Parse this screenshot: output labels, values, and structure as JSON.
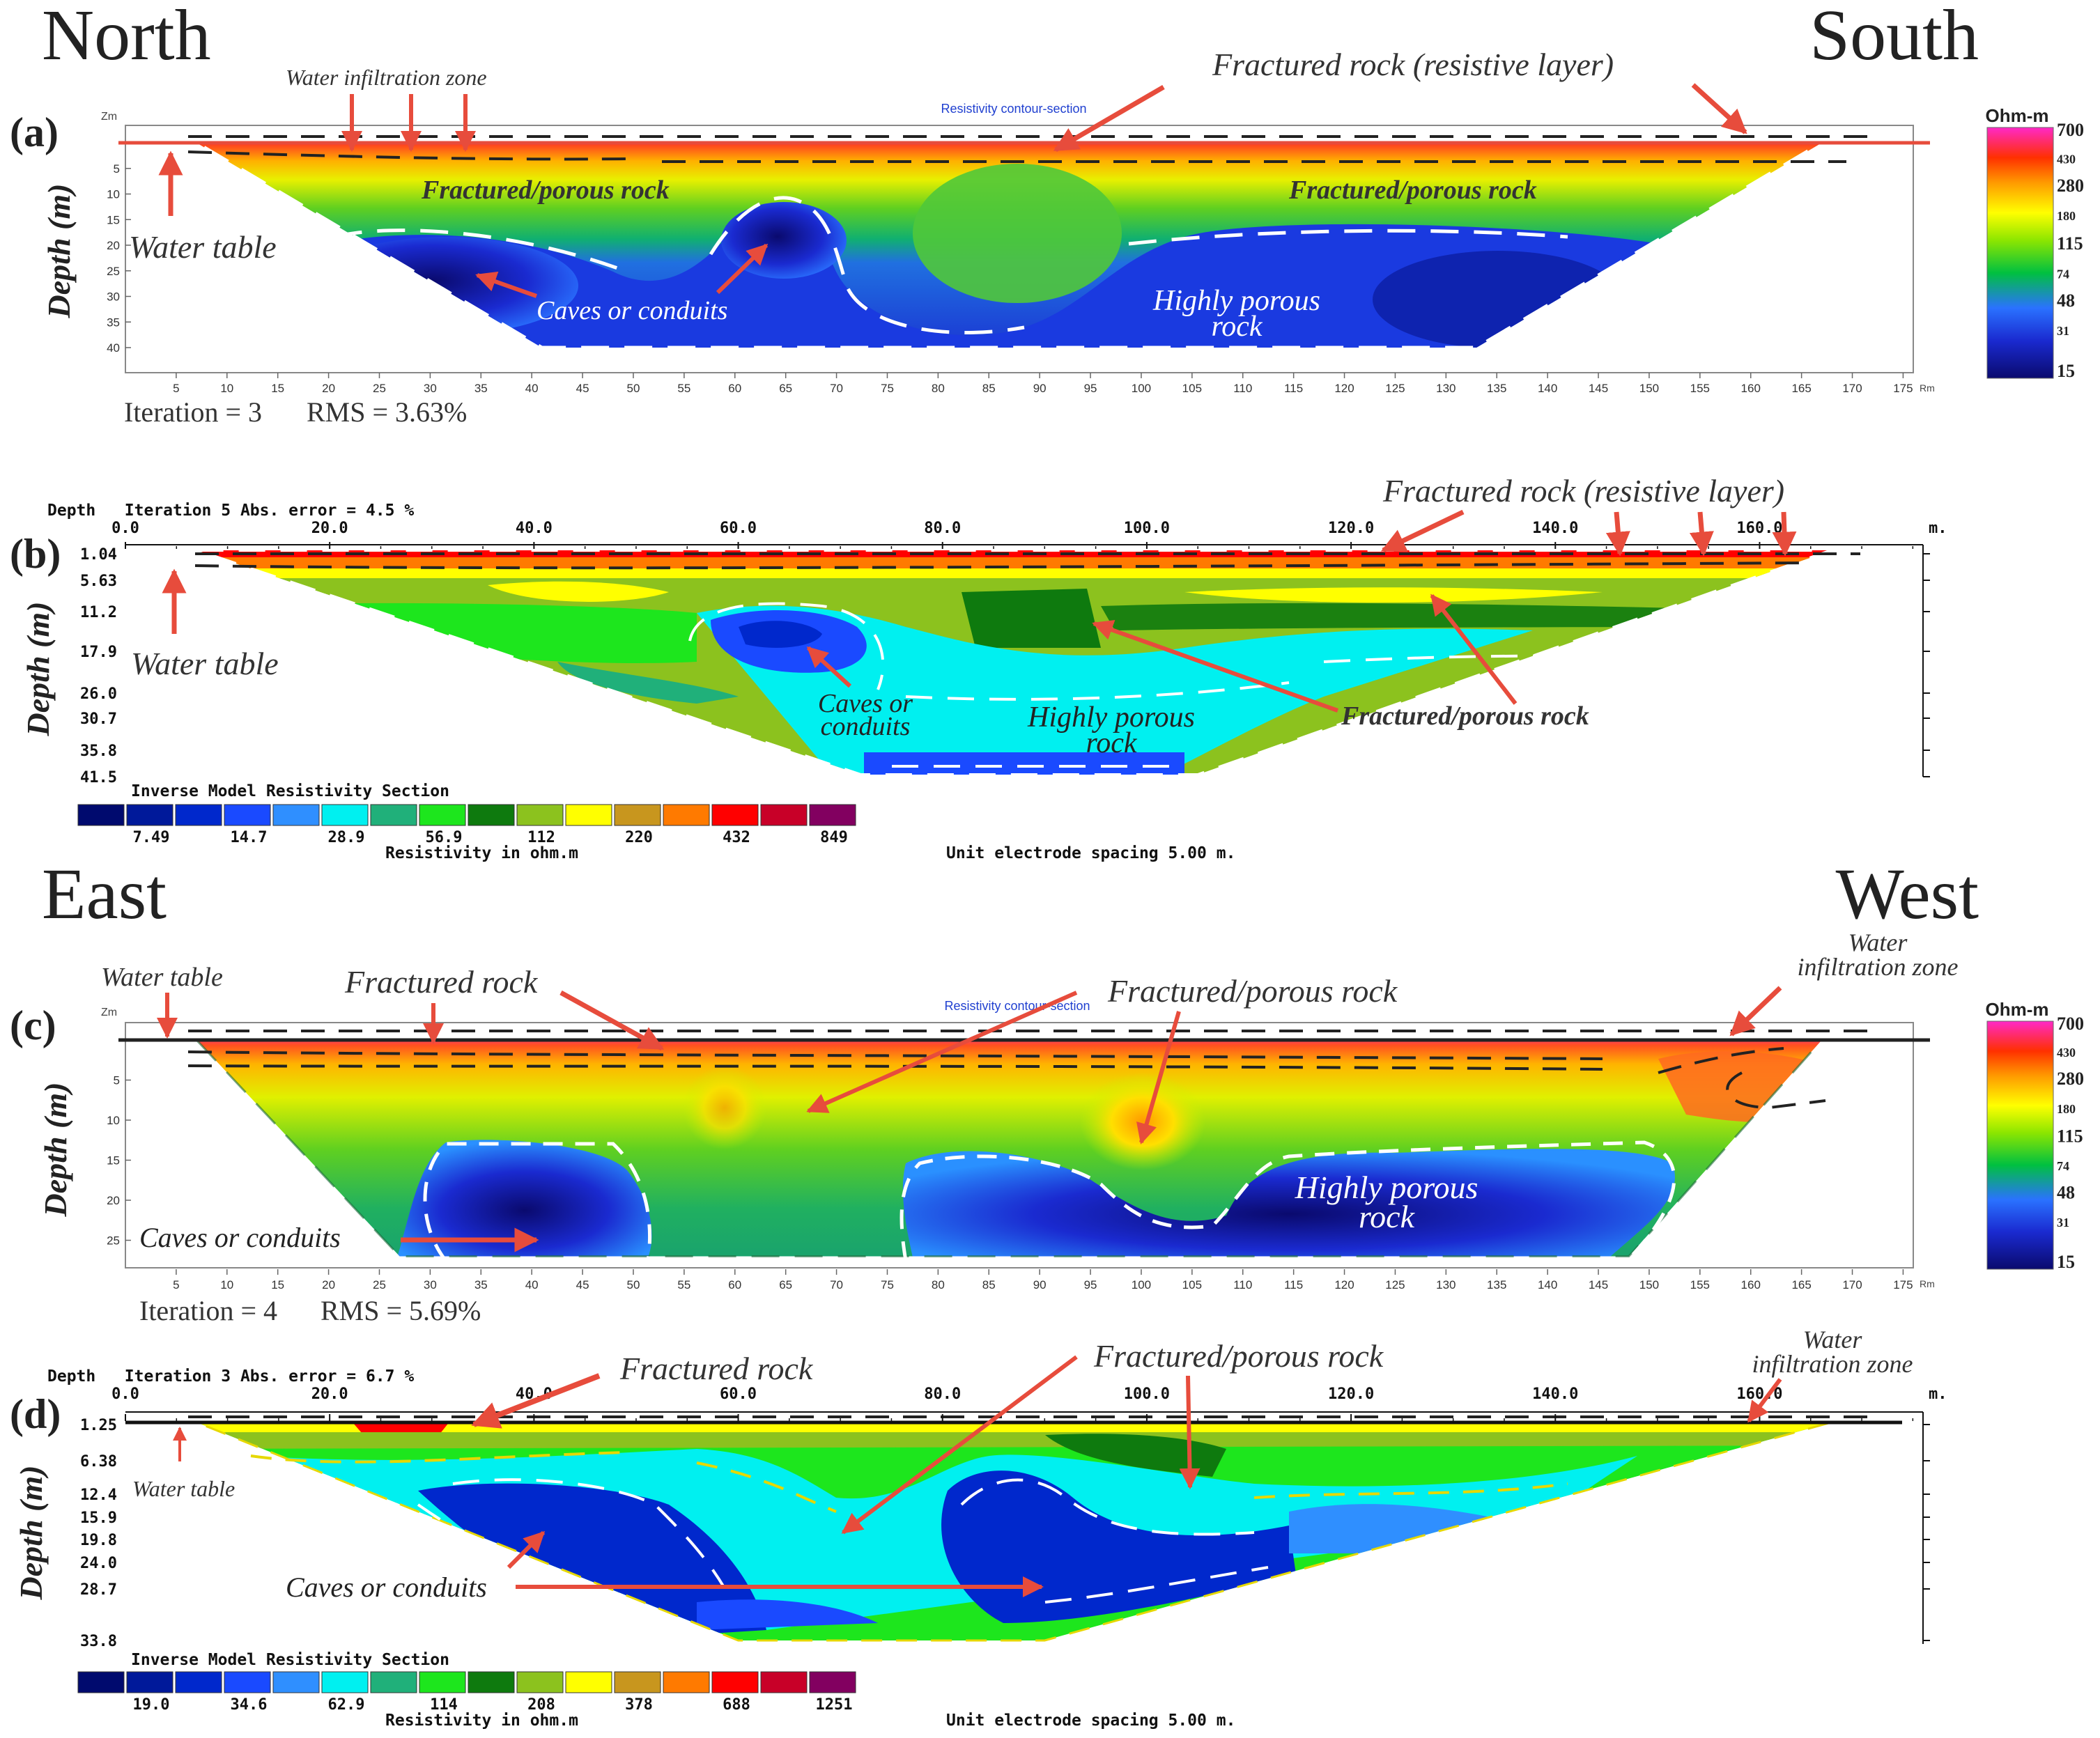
{
  "headings": {
    "north": "North",
    "south": "South",
    "east": "East",
    "west": "West"
  },
  "colors": {
    "arrow": "#e74c3c",
    "frame": "#888888",
    "res2dinv_blue": "#2040d0"
  },
  "res2dinv_palette": [
    "#000a6e",
    "#00199a",
    "#0028cc",
    "#1a4aff",
    "#2f8fff",
    "#00f0f0",
    "#20b07a",
    "#1de61d",
    "#0e7a0e",
    "#8cc21e",
    "#ffff00",
    "#c8961e",
    "#ff7a00",
    "#ff0000",
    "#c80028",
    "#820060"
  ],
  "res2dipro_palette": [
    "#0a0a6e",
    "#1a2ad0",
    "#2a72ff",
    "#00c040",
    "#8ce600",
    "#ffff00",
    "#ff9a00",
    "#ff3000",
    "#ff28c8"
  ],
  "panels": {
    "a": {
      "letter": "(a)",
      "software_title": "Resistivity contour-section",
      "y_axis_label": "Depth (m)",
      "z_unit": "Zm",
      "x_unit": "Rm",
      "iteration_text": "Iteration = 3",
      "rms_text": "RMS = 3.63%",
      "scale": {
        "unit": "Ohm-m",
        "ticks": [
          "700",
          "430",
          "280",
          "180",
          "115",
          "74",
          "48",
          "31",
          "15"
        ]
      },
      "annotations": {
        "water_infiltration": "Water infiltration zone",
        "fractured_resistive": "Fractured rock (resistive layer)",
        "water_table": "Water table",
        "fractured_porous_1": "Fractured/porous rock",
        "fractured_porous_2": "Fractured/porous rock",
        "caves": "Caves or conduits",
        "highly_porous_1": "Highly porous",
        "highly_porous_2": "rock"
      }
    },
    "b": {
      "letter": "(b)",
      "header_text": "Depth   Iteration 5 Abs. error = 4.5 %",
      "y_axis_label": "Depth (m)",
      "x_unit": "m.",
      "legend_title": "Inverse Model Resistivity Section",
      "legend_ticks": [
        "7.49",
        "14.7",
        "28.9",
        "56.9",
        "112",
        "220",
        "432",
        "849"
      ],
      "legend_caption": "Resistivity in ohm.m",
      "electrode_text": "Unit electrode spacing 5.00 m.",
      "annotations": {
        "fractured_resistive": "Fractured rock (resistive layer)",
        "water_table": "Water table",
        "caves_1": "Caves or",
        "caves_2": "conduits",
        "highly_porous_1": "Highly porous",
        "highly_porous_2": "rock",
        "fractured_porous": "Fractured/porous rock"
      }
    },
    "c": {
      "letter": "(c)",
      "software_title": "Resistivity contour-section",
      "y_axis_label": "Depth (m)",
      "z_unit": "Zm",
      "x_unit": "Rm",
      "iteration_text": "Iteration = 4",
      "rms_text": "RMS = 5.69%",
      "scale": {
        "unit": "Ohm-m",
        "ticks": [
          "700",
          "430",
          "280",
          "180",
          "115",
          "74",
          "48",
          "31",
          "15"
        ]
      },
      "annotations": {
        "water_table": "Water table",
        "fractured_rock": "Fractured rock",
        "fractured_porous": "Fractured/porous rock",
        "water_infiltration_1": "Water",
        "water_infiltration_2": "infiltration zone",
        "caves": "Caves or conduits",
        "highly_porous_1": "Highly porous",
        "highly_porous_2": "rock"
      }
    },
    "d": {
      "letter": "(d)",
      "header_text": "Depth   Iteration 3 Abs. error = 6.7 %",
      "y_axis_label": "Depth (m)",
      "x_unit": "m.",
      "legend_title": "Inverse Model Resistivity Section",
      "legend_ticks": [
        "19.0",
        "34.6",
        "62.9",
        "114",
        "208",
        "378",
        "688",
        "1251"
      ],
      "legend_caption": "Resistivity in ohm.m",
      "electrode_text": "Unit electrode spacing 5.00 m.",
      "annotations": {
        "fractured_rock": "Fractured rock",
        "fractured_porous": "Fractured/porous rock",
        "water_infiltration_1": "Water",
        "water_infiltration_2": "infiltration zone",
        "water_table": "Water table",
        "caves": "Caves or conduits"
      }
    }
  },
  "chart_data": [
    {
      "type": "heatmap",
      "panel": "a",
      "x_ticks": [
        5,
        10,
        15,
        20,
        25,
        30,
        35,
        40,
        45,
        50,
        55,
        60,
        65,
        70,
        75,
        80,
        85,
        90,
        95,
        100,
        105,
        110,
        115,
        120,
        125,
        130,
        135,
        140,
        145,
        150,
        155,
        160,
        165,
        170,
        175
      ],
      "y_ticks": [
        5,
        10,
        15,
        20,
        25,
        30,
        35,
        40
      ],
      "xlim": [
        0,
        176
      ],
      "ylim": [
        0,
        42
      ],
      "profile": {
        "top_left_x": 7,
        "top_right_x": 167,
        "bottom_left_x": 41,
        "bottom_right_x": 133,
        "max_depth": 40
      },
      "colorbar_ticks": [
        15,
        31,
        48,
        74,
        115,
        180,
        280,
        430,
        700
      ],
      "colorbar_unit": "Ohm-m"
    },
    {
      "type": "heatmap",
      "panel": "b",
      "x_ticks": [
        0.0,
        20.0,
        40.0,
        60.0,
        80.0,
        100.0,
        120.0,
        140.0,
        160.0
      ],
      "x_tick_labels": [
        "0.0",
        "20.0",
        "40.0",
        "60.0",
        "80.0",
        "100.0",
        "120.0",
        "140.0",
        "160.0"
      ],
      "y_ticks": [
        1.04,
        5.63,
        11.2,
        17.9,
        26.0,
        30.7,
        35.8,
        41.5
      ],
      "y_tick_labels": [
        "1.04",
        "5.63",
        "11.2",
        "17.9",
        "26.0",
        "30.7",
        "35.8",
        "41.5"
      ],
      "xlim": [
        0,
        176
      ],
      "profile": {
        "top_left_x": 7,
        "top_right_x": 167,
        "bottom_left_x": 72,
        "bottom_right_x": 105,
        "max_depth": 41.5
      },
      "legend_values": [
        7.49,
        14.7,
        28.9,
        56.9,
        112,
        220,
        432,
        849
      ],
      "colorbar_unit": "ohm.m"
    },
    {
      "type": "heatmap",
      "panel": "c",
      "x_ticks": [
        5,
        10,
        15,
        20,
        25,
        30,
        35,
        40,
        45,
        50,
        55,
        60,
        65,
        70,
        75,
        80,
        85,
        90,
        95,
        100,
        105,
        110,
        115,
        120,
        125,
        130,
        135,
        140,
        145,
        150,
        155,
        160,
        165,
        170,
        175
      ],
      "y_ticks": [
        5,
        10,
        15,
        20,
        25
      ],
      "xlim": [
        0,
        176
      ],
      "ylim": [
        0,
        28
      ],
      "profile": {
        "top_left_x": 7,
        "top_right_x": 167,
        "bottom_left_x": 27,
        "bottom_right_x": 148,
        "max_depth": 27
      },
      "colorbar_ticks": [
        15,
        31,
        48,
        74,
        115,
        180,
        280,
        430,
        700
      ],
      "colorbar_unit": "Ohm-m"
    },
    {
      "type": "heatmap",
      "panel": "d",
      "x_ticks": [
        0.0,
        20.0,
        40.0,
        60.0,
        80.0,
        100.0,
        120.0,
        140.0,
        160.0
      ],
      "x_tick_labels": [
        "0.0",
        "20.0",
        "40.0",
        "60.0",
        "80.0",
        "100.0",
        "120.0",
        "140.0",
        "160.0"
      ],
      "y_ticks": [
        1.25,
        6.38,
        12.4,
        15.9,
        19.8,
        24.0,
        28.7,
        33.8
      ],
      "y_tick_labels": [
        "1.25",
        "6.38",
        "12.4",
        "15.9",
        "19.8",
        "24.0",
        "28.7",
        "33.8"
      ],
      "xlim": [
        0,
        176
      ],
      "profile": {
        "top_left_x": 7,
        "top_right_x": 167,
        "bottom_left_x": 60,
        "bottom_right_x": 90,
        "max_depth": 33.8
      },
      "legend_values": [
        19.0,
        34.6,
        62.9,
        114,
        208,
        378,
        688,
        1251
      ],
      "colorbar_unit": "ohm.m"
    }
  ]
}
